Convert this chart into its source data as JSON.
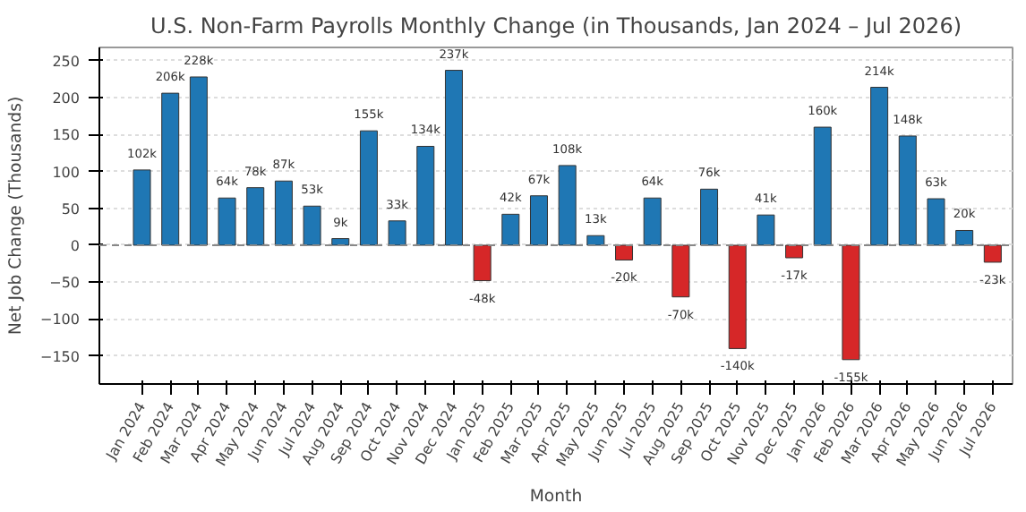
{
  "chart_data": {
    "type": "bar",
    "title": "U.S. Non-Farm Payrolls Monthly Change (in Thousands, Jan 2024 – Jul 2026)",
    "xlabel": "Month",
    "ylabel": "Net Job Change (Thousands)",
    "categories": [
      "Jan 2024",
      "Feb 2024",
      "Mar 2024",
      "Apr 2024",
      "May 2024",
      "Jun 2024",
      "Jul 2024",
      "Aug 2024",
      "Sep 2024",
      "Oct 2024",
      "Nov 2024",
      "Dec 2024",
      "Jan 2025",
      "Feb 2025",
      "Mar 2025",
      "Apr 2025",
      "May 2025",
      "Jun 2025",
      "Jul 2025",
      "Aug 2025",
      "Sep 2025",
      "Oct 2025",
      "Nov 2025",
      "Dec 2025",
      "Jan 2026",
      "Feb 2026",
      "Mar 2026",
      "Apr 2026",
      "May 2026",
      "Jun 2026",
      "Jul 2026"
    ],
    "values": [
      102,
      206,
      228,
      64,
      78,
      87,
      53,
      9,
      155,
      33,
      134,
      237,
      -48,
      42,
      67,
      108,
      13,
      -20,
      64,
      -70,
      76,
      -140,
      41,
      -17,
      160,
      -155,
      214,
      148,
      63,
      20,
      -23
    ],
    "value_labels": [
      "102k",
      "206k",
      "228k",
      "64k",
      "78k",
      "87k",
      "53k",
      "9k",
      "155k",
      "33k",
      "134k",
      "237k",
      "-48k",
      "42k",
      "67k",
      "108k",
      "13k",
      "-20k",
      "64k",
      "-70k",
      "76k",
      "-140k",
      "41k",
      "-17k",
      "160k",
      "-155k",
      "214k",
      "148k",
      "63k",
      "20k",
      "-23k"
    ],
    "colors": [
      "#1f77b4",
      "#1f77b4",
      "#1f77b4",
      "#1f77b4",
      "#1f77b4",
      "#1f77b4",
      "#1f77b4",
      "#1f77b4",
      "#1f77b4",
      "#1f77b4",
      "#1f77b4",
      "#1f77b4",
      "#d62728",
      "#1f77b4",
      "#1f77b4",
      "#1f77b4",
      "#1f77b4",
      "#d62728",
      "#1f77b4",
      "#d62728",
      "#1f77b4",
      "#d62728",
      "#1f77b4",
      "#d62728",
      "#1f77b4",
      "#d62728",
      "#1f77b4",
      "#1f77b4",
      "#1f77b4",
      "#1f77b4",
      "#d62728"
    ],
    "ylim": [
      -188,
      268
    ],
    "yticks": [
      -150,
      -100,
      -50,
      0,
      50,
      100,
      150,
      200,
      250
    ],
    "grid": "y",
    "ref_lines": [
      {
        "axis": "y",
        "value": 0,
        "color": "#888888",
        "line_style": "dashed"
      }
    ]
  }
}
